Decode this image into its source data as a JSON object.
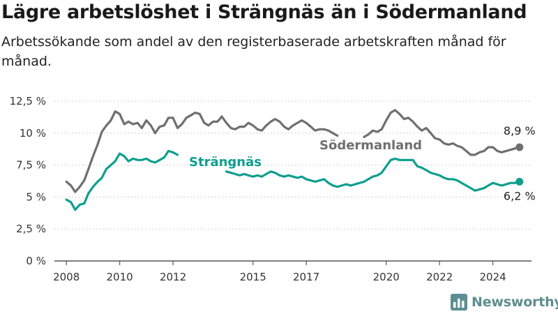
{
  "title": "Lägre arbetslöshet i Strängnäs än i Södermanland",
  "subtitle": "Arbetssökande som andel av den registerbaserade arbetskraften månad för månad.",
  "brand": {
    "name": "Newsworthy",
    "icon": "bar-chart-logo-icon",
    "color": "#5d8e91"
  },
  "chart_data": {
    "type": "line",
    "title": "Lägre arbetslöshet i Strängnäs än i Södermanland",
    "subtitle": "Arbetssökande som andel av den registerbaserade arbetskraften månad för månad.",
    "xlabel": "",
    "ylabel": "",
    "xlim": [
      2007.5,
      2025.5
    ],
    "ylim": [
      0,
      12.5
    ],
    "y_ticks": [
      0,
      2.5,
      5,
      7.5,
      10,
      12.5
    ],
    "y_tick_labels": [
      "0 %",
      "2,5 %",
      "5 %",
      "7,5 %",
      "10 %",
      "12,5 %"
    ],
    "x_ticks": [
      2008,
      2010,
      2012,
      2015,
      2017,
      2020,
      2022,
      2024
    ],
    "x_tick_labels": [
      "2008",
      "2010",
      "2012",
      "2015",
      "2017",
      "2020",
      "2022",
      "2024"
    ],
    "grid": true,
    "legend": "direct labels on lines",
    "series": [
      {
        "name": "Södermanland",
        "color": "#6f6f6f",
        "end_label": "8,9 %",
        "segments": [
          {
            "x": [
              2008.0,
              2008.17,
              2008.33,
              2008.5,
              2008.67,
              2008.83,
              2009.0,
              2009.17,
              2009.33,
              2009.5,
              2009.67,
              2009.83,
              2010.0,
              2010.17,
              2010.33,
              2010.5,
              2010.67,
              2010.83,
              2011.0,
              2011.17,
              2011.33,
              2011.5,
              2011.67,
              2011.83,
              2012.0,
              2012.17,
              2012.33,
              2012.5,
              2012.67,
              2012.83,
              2013.0,
              2013.17,
              2013.33,
              2013.5,
              2013.67,
              2013.83,
              2014.0,
              2014.17,
              2014.33,
              2014.5,
              2014.67,
              2014.83,
              2015.0,
              2015.17,
              2015.33,
              2015.5,
              2015.67,
              2015.83,
              2016.0,
              2016.17,
              2016.33,
              2016.5,
              2016.67,
              2016.83,
              2017.0,
              2017.17,
              2017.33,
              2017.5,
              2017.67,
              2017.83,
              2018.0,
              2018.17
            ],
            "y": [
              6.2,
              5.9,
              5.4,
              5.8,
              6.3,
              7.2,
              8.2,
              9.1,
              10.1,
              10.6,
              11.0,
              11.7,
              11.5,
              10.7,
              10.9,
              10.7,
              10.8,
              10.4,
              11.0,
              10.6,
              10.0,
              10.5,
              10.6,
              11.2,
              11.2,
              10.4,
              10.7,
              11.2,
              11.4,
              11.6,
              11.5,
              10.8,
              10.6,
              10.9,
              10.9,
              11.3,
              10.8,
              10.4,
              10.3,
              10.5,
              10.5,
              10.8,
              10.6,
              10.3,
              10.2,
              10.6,
              10.9,
              11.1,
              10.9,
              10.5,
              10.3,
              10.6,
              10.8,
              11.0,
              10.8,
              10.5,
              10.2,
              10.3,
              10.3,
              10.2,
              10.0,
              9.8
            ]
          },
          {
            "x": [
              2019.17,
              2019.33,
              2019.5,
              2019.67,
              2019.83,
              2020.0,
              2020.17,
              2020.33,
              2020.5,
              2020.67,
              2020.83,
              2021.0,
              2021.17,
              2021.33,
              2021.5,
              2021.67,
              2021.83,
              2022.0,
              2022.17,
              2022.33,
              2022.5,
              2022.67,
              2022.83,
              2023.0,
              2023.17,
              2023.33,
              2023.5,
              2023.67,
              2023.83,
              2024.0,
              2024.17,
              2024.33,
              2024.5,
              2024.67,
              2024.83,
              2025.0
            ],
            "y": [
              9.7,
              9.9,
              10.2,
              10.1,
              10.3,
              11.0,
              11.6,
              11.8,
              11.5,
              11.1,
              11.2,
              10.9,
              10.5,
              10.2,
              10.4,
              10.0,
              9.6,
              9.5,
              9.2,
              9.1,
              9.2,
              9.0,
              8.9,
              8.6,
              8.3,
              8.3,
              8.5,
              8.6,
              8.9,
              8.9,
              8.6,
              8.5,
              8.6,
              8.7,
              8.8,
              8.9
            ]
          }
        ]
      },
      {
        "name": "Strängnäs",
        "color": "#0e9e8e",
        "end_label": "6,2 %",
        "segments": [
          {
            "x": [
              2008.0,
              2008.17,
              2008.33,
              2008.5,
              2008.67,
              2008.83,
              2009.0,
              2009.17,
              2009.33,
              2009.5,
              2009.67,
              2009.83,
              2010.0,
              2010.17,
              2010.33,
              2010.5,
              2010.67,
              2010.83,
              2011.0,
              2011.17,
              2011.33,
              2011.5,
              2011.67,
              2011.83,
              2012.0,
              2012.17
            ],
            "y": [
              4.8,
              4.6,
              4.0,
              4.4,
              4.5,
              5.3,
              5.8,
              6.2,
              6.5,
              7.2,
              7.5,
              7.8,
              8.4,
              8.2,
              7.8,
              8.0,
              7.9,
              7.9,
              8.0,
              7.8,
              7.7,
              7.9,
              8.1,
              8.6,
              8.5,
              8.3
            ]
          },
          {
            "x": [
              2014.0,
              2014.17,
              2014.33,
              2014.5,
              2014.67,
              2014.83,
              2015.0,
              2015.17,
              2015.33,
              2015.5,
              2015.67,
              2015.83,
              2016.0,
              2016.17,
              2016.33,
              2016.5,
              2016.67,
              2016.83,
              2017.0,
              2017.17,
              2017.33,
              2017.5,
              2017.67,
              2017.83,
              2018.0,
              2018.17,
              2018.33,
              2018.5,
              2018.67,
              2018.83,
              2019.0,
              2019.17,
              2019.33,
              2019.5,
              2019.67,
              2019.83,
              2020.0,
              2020.17,
              2020.33,
              2020.5,
              2020.67,
              2020.83,
              2021.0,
              2021.17,
              2021.33,
              2021.5,
              2021.67,
              2021.83,
              2022.0,
              2022.17,
              2022.33,
              2022.5,
              2022.67,
              2022.83,
              2023.0,
              2023.17,
              2023.33,
              2023.5,
              2023.67,
              2023.83,
              2024.0,
              2024.17,
              2024.33,
              2024.5,
              2024.67,
              2024.83,
              2025.0
            ],
            "y": [
              7.0,
              6.9,
              6.8,
              6.7,
              6.8,
              6.7,
              6.6,
              6.7,
              6.6,
              6.8,
              7.0,
              6.9,
              6.7,
              6.6,
              6.7,
              6.6,
              6.5,
              6.6,
              6.4,
              6.3,
              6.2,
              6.3,
              6.4,
              6.1,
              5.9,
              5.8,
              5.9,
              6.0,
              5.9,
              6.0,
              6.1,
              6.2,
              6.4,
              6.6,
              6.7,
              6.9,
              7.4,
              7.9,
              8.0,
              7.9,
              7.9,
              7.9,
              7.9,
              7.4,
              7.3,
              7.1,
              6.9,
              6.8,
              6.7,
              6.5,
              6.4,
              6.4,
              6.3,
              6.1,
              5.9,
              5.7,
              5.5,
              5.6,
              5.7,
              5.9,
              6.1,
              6.0,
              5.9,
              6.0,
              6.1,
              6.1,
              6.2
            ]
          }
        ]
      }
    ]
  }
}
